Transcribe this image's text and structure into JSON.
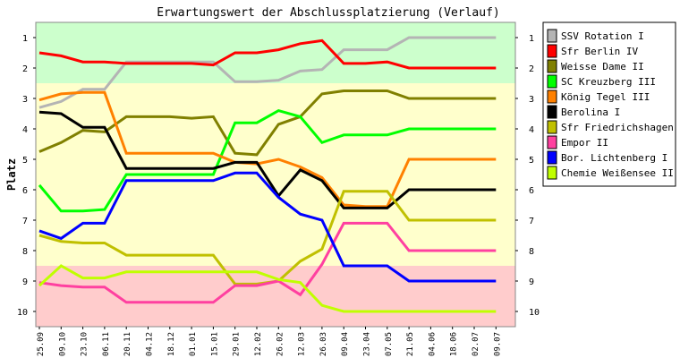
{
  "chart_data": {
    "type": "line",
    "title": "Erwartungswert der Abschlussplatzierung (Verlauf)",
    "ylabel": "Platz",
    "xlabel": "",
    "ylim": [
      10,
      1
    ],
    "y_inverted": true,
    "y_ticks": [
      "1",
      "2",
      "3",
      "4",
      "5",
      "6",
      "7",
      "8",
      "9",
      "10"
    ],
    "x": [
      "25.09",
      "09.10",
      "23.10",
      "06.11",
      "20.11",
      "04.12",
      "18.12",
      "01.01",
      "15.01",
      "29.01",
      "12.02",
      "26.02",
      "12.03",
      "26.03",
      "09.04",
      "23.04",
      "07.05",
      "21.05",
      "04.06",
      "18.06",
      "02.07",
      "09.07"
    ],
    "x_tick_labels": [
      "25.09",
      "09.10",
      "23.10",
      "06.11",
      "20.11",
      "04.12",
      "18.12",
      "01.01",
      "15.01",
      "29.01",
      "12.02",
      "26.02",
      "12.03",
      "26.03",
      "09.04",
      "23.04",
      "07.05",
      "21.05",
      "04.06",
      "18.06",
      "02.07",
      "09.07"
    ],
    "grid": false,
    "legend_position": "right",
    "background_bands": [
      {
        "from": 0.5,
        "to": 2.5,
        "color": "#ccffcc"
      },
      {
        "from": 2.5,
        "to": 8.5,
        "color": "#ffffcc"
      },
      {
        "from": 8.5,
        "to": 10.5,
        "color": "#ffcccc"
      }
    ],
    "series": [
      {
        "name": "SSV Rotation I",
        "color": "#b4b4b4",
        "values": [
          3.3,
          3.1,
          2.7,
          2.7,
          1.8,
          1.8,
          1.8,
          1.8,
          1.8,
          2.45,
          2.45,
          2.4,
          2.1,
          2.05,
          1.4,
          1.4,
          1.4,
          1.0,
          1.0,
          1.0,
          1.0,
          1.0
        ]
      },
      {
        "name": "Sfr Berlin IV",
        "color": "#ff0000",
        "values": [
          1.5,
          1.6,
          1.8,
          1.8,
          1.85,
          1.85,
          1.85,
          1.85,
          1.9,
          1.5,
          1.5,
          1.4,
          1.2,
          1.1,
          1.85,
          1.85,
          1.8,
          2.0,
          2.0,
          2.0,
          2.0,
          2.0
        ]
      },
      {
        "name": "Weisse Dame II",
        "color": "#808000",
        "values": [
          4.75,
          4.45,
          4.05,
          4.1,
          3.6,
          3.6,
          3.6,
          3.65,
          3.6,
          4.8,
          4.85,
          3.85,
          3.6,
          2.85,
          2.75,
          2.75,
          2.75,
          3.0,
          3.0,
          3.0,
          3.0,
          3.0
        ]
      },
      {
        "name": "SC Kreuzberg III",
        "color": "#00ff00",
        "values": [
          5.85,
          6.7,
          6.7,
          6.65,
          5.5,
          5.5,
          5.5,
          5.5,
          5.5,
          3.8,
          3.8,
          3.4,
          3.6,
          4.45,
          4.2,
          4.2,
          4.2,
          4.0,
          4.0,
          4.0,
          4.0,
          4.0
        ]
      },
      {
        "name": "König Tegel III",
        "color": "#ff8000",
        "values": [
          3.05,
          2.85,
          2.8,
          2.8,
          4.8,
          4.8,
          4.8,
          4.8,
          4.8,
          5.1,
          5.15,
          5.0,
          5.25,
          5.6,
          6.5,
          6.55,
          6.55,
          5.0,
          5.0,
          5.0,
          5.0,
          5.0
        ]
      },
      {
        "name": "Berolina I",
        "color": "#000000",
        "values": [
          3.45,
          3.5,
          3.95,
          3.95,
          5.3,
          5.3,
          5.3,
          5.3,
          5.3,
          5.1,
          5.1,
          6.2,
          5.35,
          5.7,
          6.6,
          6.6,
          6.6,
          6.0,
          6.0,
          6.0,
          6.0,
          6.0
        ]
      },
      {
        "name": "Sfr Friedrichshagen I",
        "color": "#c0c000",
        "values": [
          7.5,
          7.7,
          7.75,
          7.75,
          8.15,
          8.15,
          8.15,
          8.15,
          8.15,
          9.1,
          9.1,
          9.0,
          8.35,
          7.95,
          6.05,
          6.05,
          6.05,
          7.0,
          7.0,
          7.0,
          7.0,
          7.0
        ]
      },
      {
        "name": "Empor II",
        "color": "#ff40a0",
        "values": [
          9.05,
          9.15,
          9.2,
          9.2,
          9.7,
          9.7,
          9.7,
          9.7,
          9.7,
          9.15,
          9.15,
          9.0,
          9.45,
          8.45,
          7.1,
          7.1,
          7.1,
          8.0,
          8.0,
          8.0,
          8.0,
          8.0
        ]
      },
      {
        "name": "Bor. Lichtenberg I",
        "color": "#0000ff",
        "values": [
          7.35,
          7.6,
          7.1,
          7.1,
          5.7,
          5.7,
          5.7,
          5.7,
          5.7,
          5.45,
          5.45,
          6.25,
          6.8,
          7.0,
          8.5,
          8.5,
          8.5,
          9.0,
          9.0,
          9.0,
          9.0,
          9.0
        ]
      },
      {
        "name": "Chemie Weißensee II",
        "color": "#c0ff00",
        "values": [
          9.15,
          8.5,
          8.9,
          8.9,
          8.7,
          8.7,
          8.7,
          8.7,
          8.7,
          8.7,
          8.7,
          8.95,
          9.05,
          9.8,
          10.0,
          10.0,
          10.0,
          10.0,
          10.0,
          10.0,
          10.0,
          10.0
        ]
      }
    ]
  }
}
